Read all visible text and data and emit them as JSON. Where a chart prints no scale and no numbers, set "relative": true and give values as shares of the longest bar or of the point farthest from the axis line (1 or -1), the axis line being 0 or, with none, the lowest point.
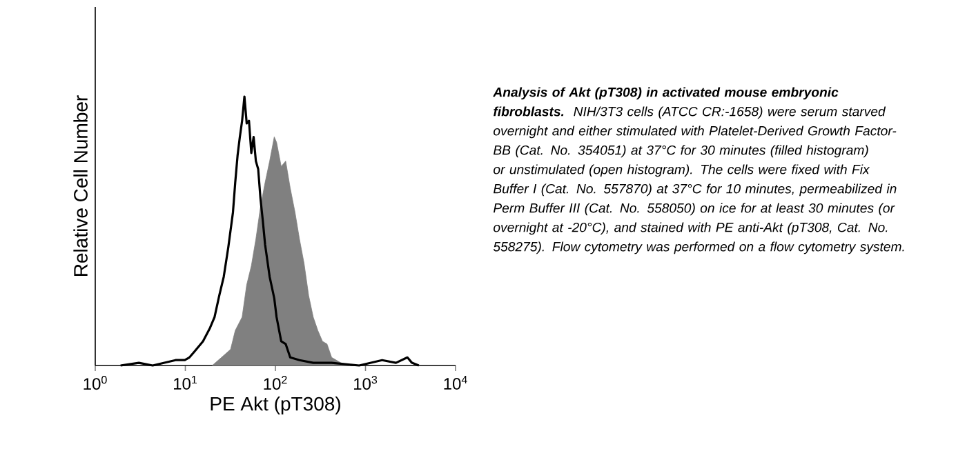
{
  "chart_data": {
    "type": "line",
    "title": "Analysis of Akt (pT308) in activated mouse embryonic fibroblasts.",
    "annotations": [
      "NIH/3T3 cells (ATCC CR:-1658) were serum starved overnight and either stimulated with Platelet-Derived Growth Factor-BB (Cat. No. 354051) at 37°C for 30 minutes (filled histogram) or unstimulated (open histogram).  The cells were fixed with Fix Buffer I (Cat. No. 557870) at 37°C for 10 minutes, permeabilized in Perm Buffer III (Cat. No. 558050) on ice for at least 30 minutes (or overnight at -20°C), and stained with PE anti-Akt (pT308, Cat. No. 558275).  Flow cytometry was performed on a flow cytometry system."
    ],
    "xlabel": "PE Akt (pT308)",
    "ylabel": "Relative Cell Number",
    "relative": true,
    "log": "x",
    "tick_labels": "x",
    "xlim": [
      1,
      10000
    ],
    "xticks": [
      {
        "value": 1,
        "label": "10$^{0}$"
      },
      {
        "value": 10,
        "label": "10$^{1}$"
      },
      {
        "value": 100,
        "label": "10$^{2}$"
      },
      {
        "value": 1000,
        "label": "10$^{3}$"
      },
      {
        "value": 10000,
        "label": "10$^{4}$"
      }
    ],
    "series": [
      {
        "type": "area",
        "color": "#808080",
        "x": [
          19.9,
          25.2,
          31.8,
          35.8,
          42.7,
          48.0,
          54.0,
          60.7,
          68.3,
          76.8,
          86.3,
          97.1,
          103,
          116,
          130,
          146,
          165,
          185,
          208,
          234,
          263,
          296,
          333,
          374,
          421,
          532,
          673
        ],
        "values": [
          0,
          0.03,
          0.06,
          0.13,
          0.18,
          0.3,
          0.37,
          0.47,
          0.59,
          0.68,
          0.76,
          0.85,
          0.83,
          0.74,
          0.76,
          0.66,
          0.57,
          0.47,
          0.38,
          0.26,
          0.18,
          0.13,
          0.09,
          0.08,
          0.03,
          0.01,
          0
        ]
      },
      {
        "color": "#000000",
        "x": [
          1.91,
          3.05,
          4.34,
          7.79,
          9.86,
          11.1,
          12.5,
          15.7,
          18.8,
          21.1,
          23.8,
          26.7,
          30.0,
          33.8,
          35.8,
          38.0,
          40.3,
          42.7,
          45.3,
          48.0,
          50.9,
          54.0,
          57.3,
          60.7,
          64.4,
          68.3,
          72.4,
          76.8,
          86.3,
          97.1,
          103,
          116,
          130,
          146,
          185,
          263,
          421,
          851,
          1530,
          2180,
          2920,
          3280,
          3910
        ],
        "values": [
          0,
          0.01,
          0,
          0.02,
          0.02,
          0.03,
          0.05,
          0.09,
          0.14,
          0.18,
          0.26,
          0.33,
          0.44,
          0.57,
          0.68,
          0.78,
          0.85,
          0.91,
          1.0,
          0.9,
          0.91,
          0.79,
          0.85,
          0.76,
          0.73,
          0.62,
          0.54,
          0.45,
          0.33,
          0.25,
          0.18,
          0.09,
          0.08,
          0.03,
          0.02,
          0.01,
          0.01,
          0,
          0.02,
          0.01,
          0.03,
          0.01,
          0
        ]
      }
    ]
  }
}
